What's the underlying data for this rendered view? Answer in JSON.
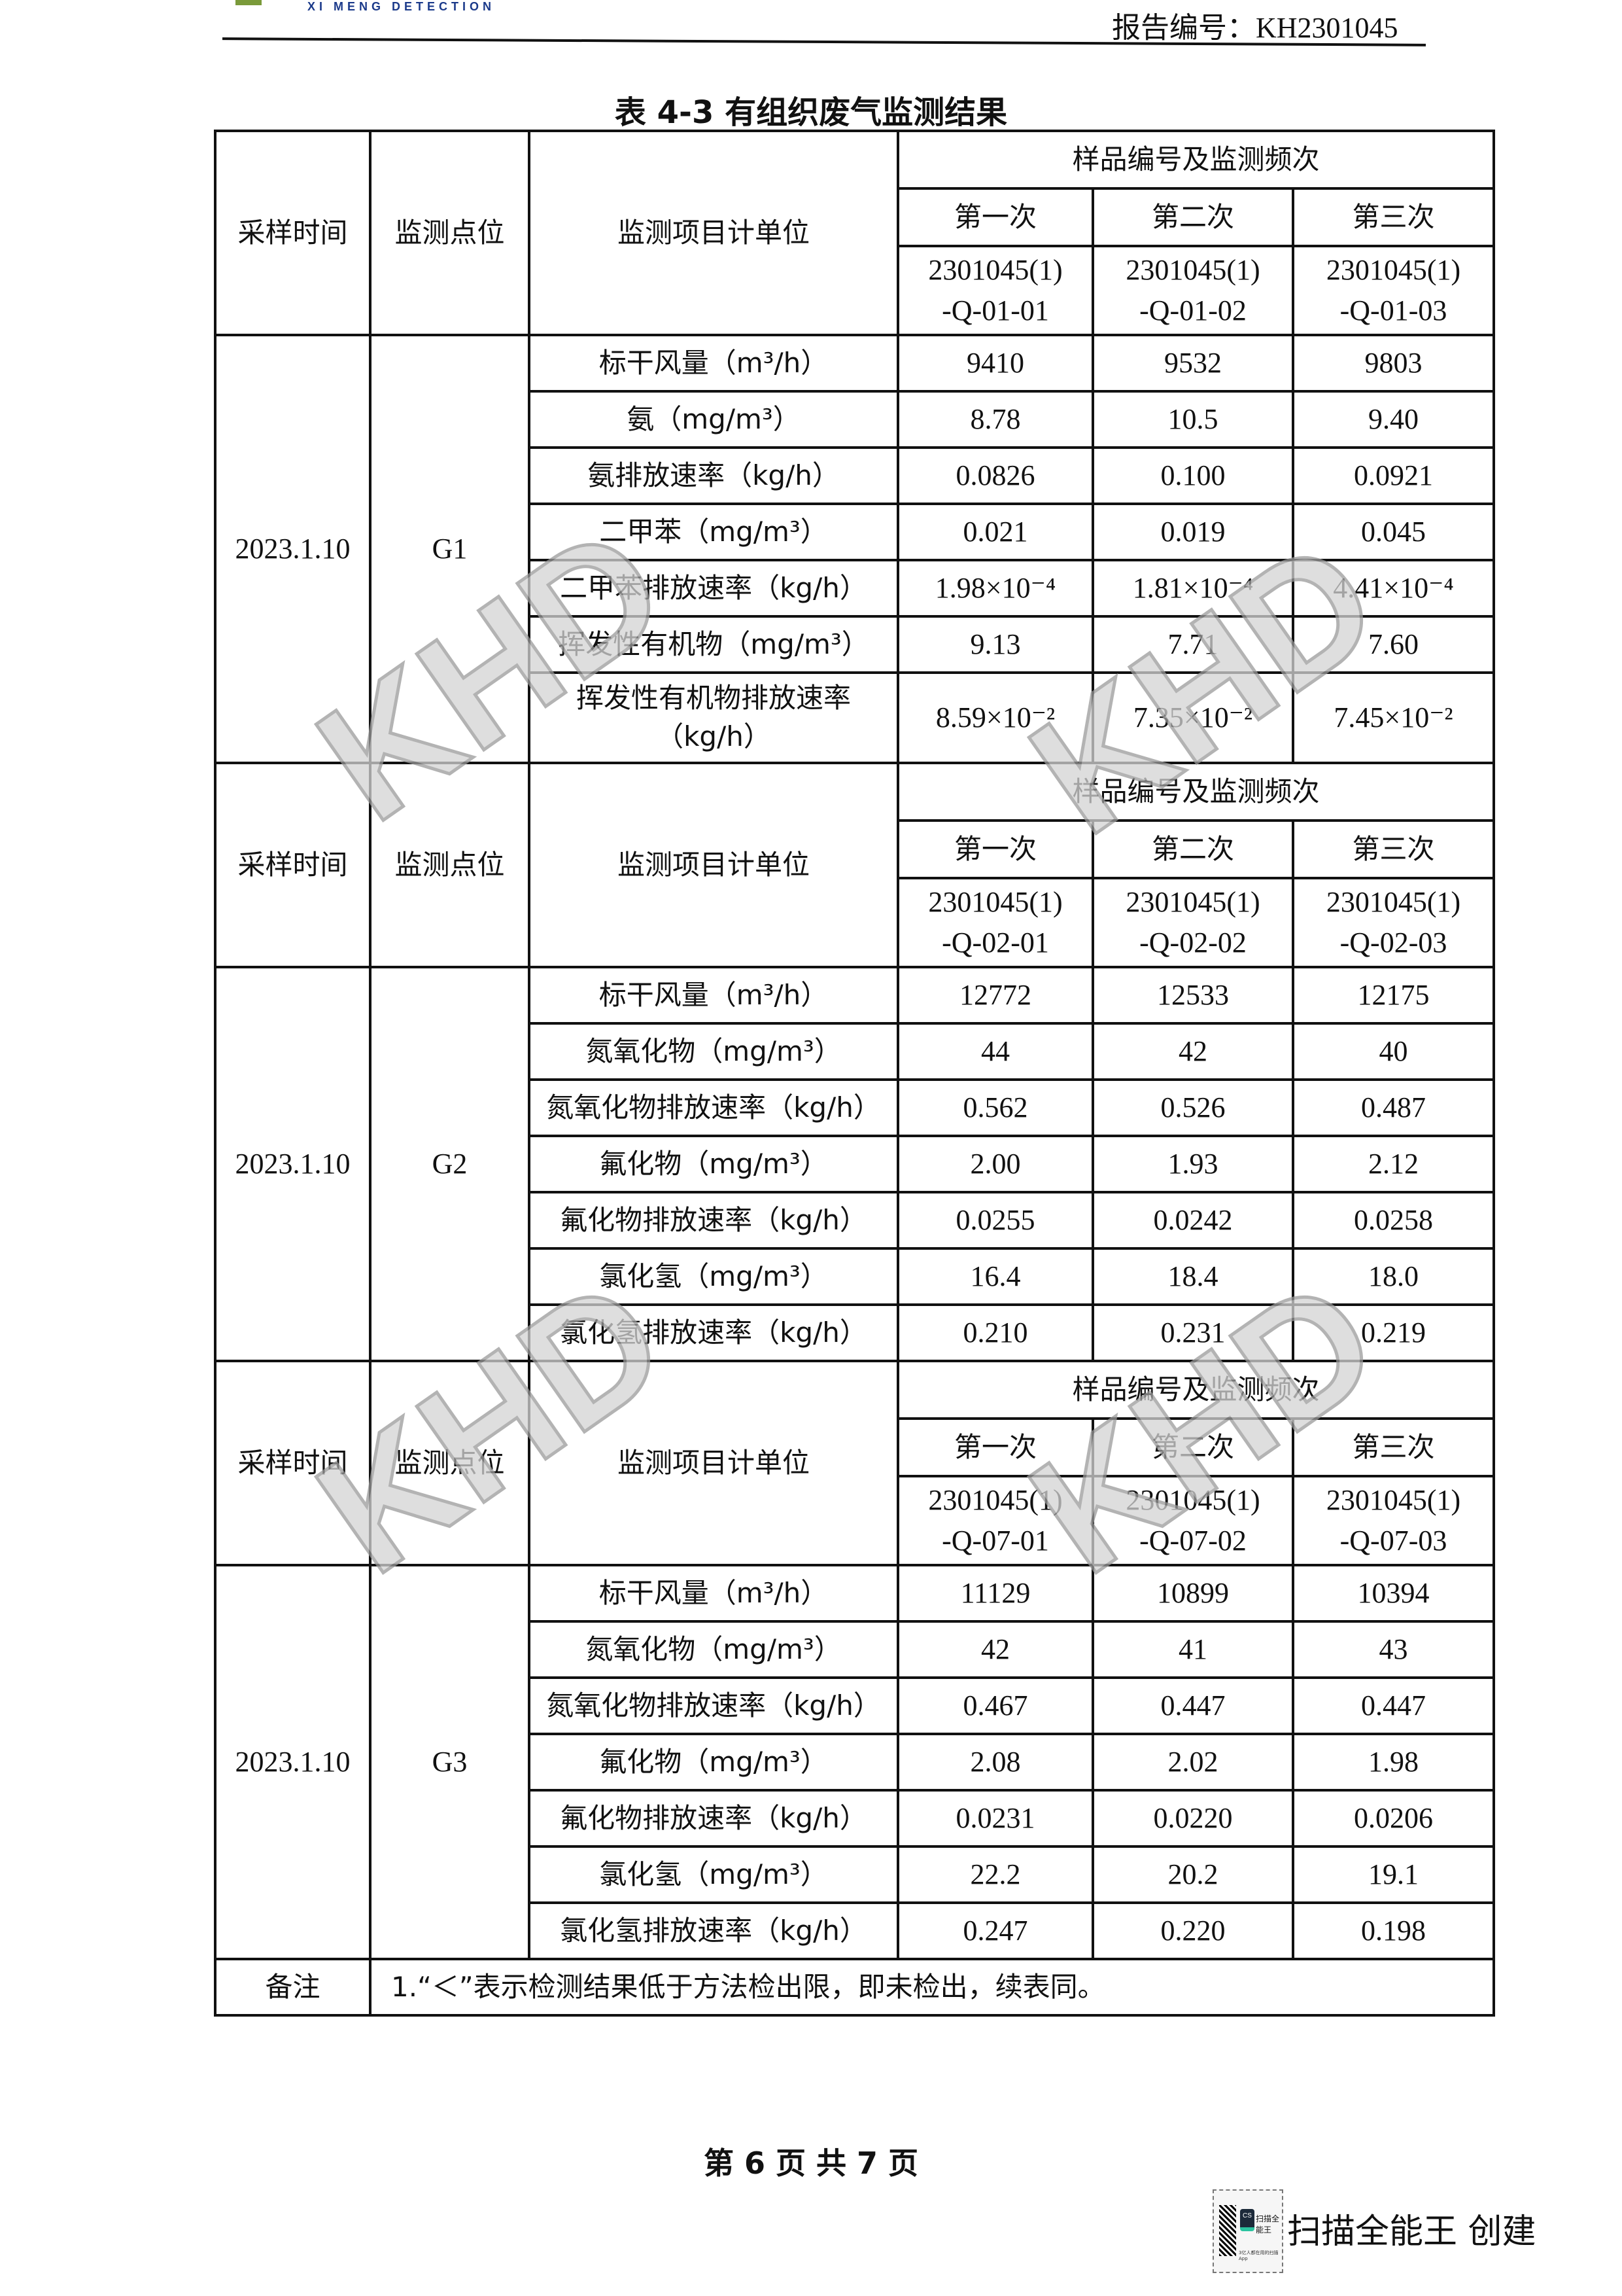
{
  "header": {
    "logo_text": "XI MENG DETECTION",
    "report_no": "报告编号：KH2301045"
  },
  "title": "表 4-3  有组织废气监测结果",
  "watermark": "KHD",
  "table": {
    "sections": [
      {
        "col_headers": {
          "time": "采样时间",
          "point": "监测点位",
          "item": "监测项目计单位",
          "sample_group": "样品编号及监测频次",
          "freq": [
            "第一次",
            "第二次",
            "第三次"
          ],
          "sample_ids": [
            "2301045(1)\n-Q-01-01",
            "2301045(1)\n-Q-01-02",
            "2301045(1)\n-Q-01-03"
          ]
        },
        "date": "2023.1.10",
        "point": "G1",
        "rows": [
          {
            "item": "标干风量（m³/h）",
            "values": [
              "9410",
              "9532",
              "9803"
            ]
          },
          {
            "item": "氨（mg/m³）",
            "values": [
              "8.78",
              "10.5",
              "9.40"
            ]
          },
          {
            "item": "氨排放速率（kg/h）",
            "values": [
              "0.0826",
              "0.100",
              "0.0921"
            ]
          },
          {
            "item": "二甲苯（mg/m³）",
            "values": [
              "0.021",
              "0.019",
              "0.045"
            ]
          },
          {
            "item": "二甲苯排放速率（kg/h）",
            "values": [
              "1.98×10⁻⁴",
              "1.81×10⁻⁴",
              "4.41×10⁻⁴"
            ]
          },
          {
            "item": "挥发性有机物（mg/m³）",
            "values": [
              "9.13",
              "7.71",
              "7.60"
            ]
          },
          {
            "item": "挥发性有机物排放速率\n（kg/h）",
            "values": [
              "8.59×10⁻²",
              "7.35×10⁻²",
              "7.45×10⁻²"
            ]
          }
        ]
      },
      {
        "col_headers": {
          "time": "采样时间",
          "point": "监测点位",
          "item": "监测项目计单位",
          "sample_group": "样品编号及监测频次",
          "freq": [
            "第一次",
            "第二次",
            "第三次"
          ],
          "sample_ids": [
            "2301045(1)\n-Q-02-01",
            "2301045(1)\n-Q-02-02",
            "2301045(1)\n-Q-02-03"
          ]
        },
        "date": "2023.1.10",
        "point": "G2",
        "rows": [
          {
            "item": "标干风量（m³/h）",
            "values": [
              "12772",
              "12533",
              "12175"
            ]
          },
          {
            "item": "氮氧化物（mg/m³）",
            "values": [
              "44",
              "42",
              "40"
            ]
          },
          {
            "item": "氮氧化物排放速率（kg/h）",
            "values": [
              "0.562",
              "0.526",
              "0.487"
            ]
          },
          {
            "item": "氟化物（mg/m³）",
            "values": [
              "2.00",
              "1.93",
              "2.12"
            ]
          },
          {
            "item": "氟化物排放速率（kg/h）",
            "values": [
              "0.0255",
              "0.0242",
              "0.0258"
            ]
          },
          {
            "item": "氯化氢（mg/m³）",
            "values": [
              "16.4",
              "18.4",
              "18.0"
            ]
          },
          {
            "item": "氯化氢排放速率（kg/h）",
            "values": [
              "0.210",
              "0.231",
              "0.219"
            ]
          }
        ]
      },
      {
        "col_headers": {
          "time": "采样时间",
          "point": "监测点位",
          "item": "监测项目计单位",
          "sample_group": "样品编号及监测频次",
          "freq": [
            "第一次",
            "第二次",
            "第三次"
          ],
          "sample_ids": [
            "2301045(1)\n-Q-07-01",
            "2301045(1)\n-Q-07-02",
            "2301045(1)\n-Q-07-03"
          ]
        },
        "date": "2023.1.10",
        "point": "G3",
        "rows": [
          {
            "item": "标干风量（m³/h）",
            "values": [
              "11129",
              "10899",
              "10394"
            ]
          },
          {
            "item": "氮氧化物（mg/m³）",
            "values": [
              "42",
              "41",
              "43"
            ]
          },
          {
            "item": "氮氧化物排放速率（kg/h）",
            "values": [
              "0.467",
              "0.447",
              "0.447"
            ]
          },
          {
            "item": "氟化物（mg/m³）",
            "values": [
              "2.08",
              "2.02",
              "1.98"
            ]
          },
          {
            "item": "氟化物排放速率（kg/h）",
            "values": [
              "0.0231",
              "0.0220",
              "0.0206"
            ]
          },
          {
            "item": "氯化氢（mg/m³）",
            "values": [
              "22.2",
              "20.2",
              "19.1"
            ]
          },
          {
            "item": "氯化氢排放速率（kg/h）",
            "values": [
              "0.247",
              "0.220",
              "0.198"
            ]
          }
        ]
      }
    ],
    "note_label": "备注",
    "note_text": "1.“＜”表示检测结果低于方法检出限，即未检出，续表同。"
  },
  "footer": {
    "page": "第 6 页  共 7 页"
  },
  "scanner": {
    "badge_name": "扫描全能王",
    "badge_logo": "CS",
    "badge_sub": "3亿人都在用的扫描App",
    "label": "扫描全能王  创建"
  }
}
